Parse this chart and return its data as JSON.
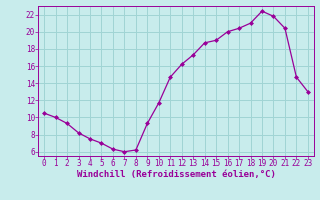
{
  "x_data": [
    0,
    1,
    2,
    3,
    4,
    5,
    6,
    7,
    8,
    9,
    10,
    11,
    12,
    13,
    14,
    15,
    16,
    17,
    18,
    19,
    20,
    21,
    22,
    23
  ],
  "y_data": [
    10.5,
    10.0,
    9.3,
    8.2,
    7.5,
    7.0,
    6.3,
    6.0,
    6.2,
    9.3,
    11.7,
    14.7,
    16.2,
    17.3,
    18.7,
    19.0,
    20.0,
    20.4,
    21.0,
    22.4,
    21.8,
    20.4,
    14.7,
    13.0
  ],
  "line_color": "#990099",
  "marker": "D",
  "marker_size": 2.0,
  "background_color": "#c8ecec",
  "grid_color": "#a0d4d4",
  "xlabel": "Windchill (Refroidissement éolien,°C)",
  "xlabel_color": "#990099",
  "tick_color": "#990099",
  "spine_color": "#990099",
  "ylim": [
    5.5,
    23.0
  ],
  "xlim": [
    -0.5,
    23.5
  ],
  "yticks": [
    6,
    8,
    10,
    12,
    14,
    16,
    18,
    20,
    22
  ],
  "xticks": [
    0,
    1,
    2,
    3,
    4,
    5,
    6,
    7,
    8,
    9,
    10,
    11,
    12,
    13,
    14,
    15,
    16,
    17,
    18,
    19,
    20,
    21,
    22,
    23
  ],
  "xlabel_fontsize": 6.5,
  "tick_fontsize": 5.5
}
